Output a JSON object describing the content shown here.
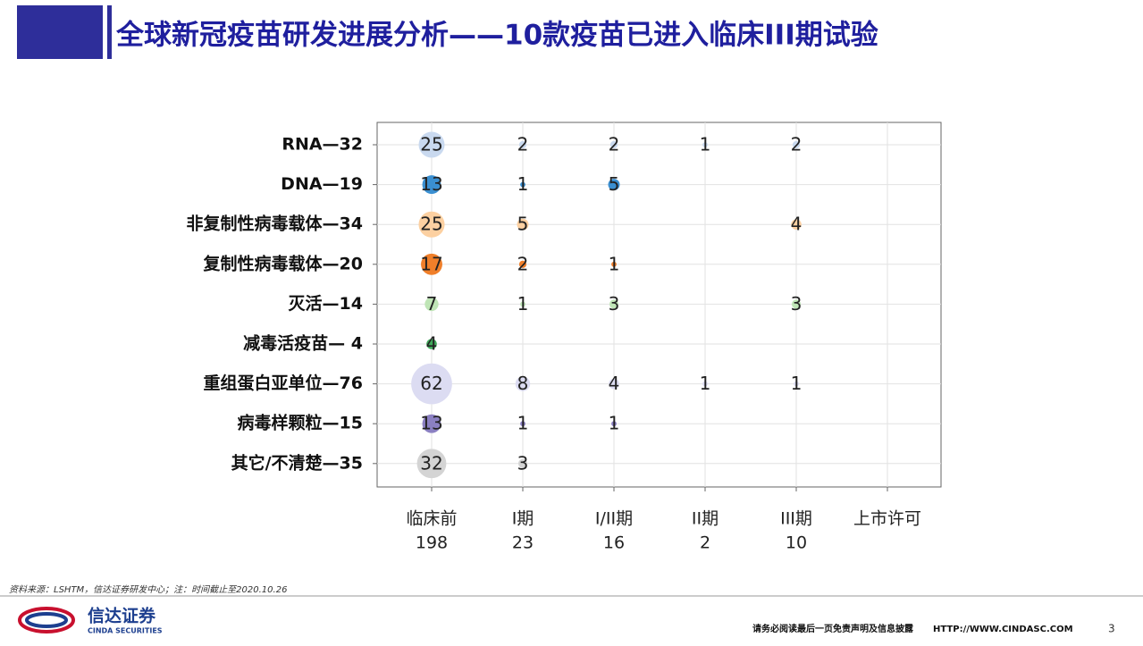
{
  "header": {
    "title": "全球新冠疫苗研发进展分析——10款疫苗已进入临床III期试验"
  },
  "chart_data": {
    "type": "bubble-grid",
    "x_categories": [
      "临床前",
      "I期",
      "I/II期",
      "II期",
      "III期",
      "上市许可"
    ],
    "x_totals": [
      198,
      23,
      16,
      2,
      10,
      null
    ],
    "series": [
      {
        "name": "RNA—32",
        "color": "#c9d9ef",
        "values": [
          25,
          2,
          2,
          1,
          2,
          null
        ]
      },
      {
        "name": "DNA—19",
        "color": "#3a8fd1",
        "values": [
          13,
          1,
          5,
          null,
          null,
          null
        ]
      },
      {
        "name": "非复制性病毒载体—34",
        "color": "#fcd0a1",
        "values": [
          25,
          5,
          null,
          null,
          4,
          null
        ]
      },
      {
        "name": "复制性病毒载体—20",
        "color": "#f07f2a",
        "values": [
          17,
          2,
          1,
          null,
          null,
          null
        ]
      },
      {
        "name": "灭活—14",
        "color": "#bfe5b6",
        "values": [
          7,
          1,
          3,
          null,
          3,
          null
        ]
      },
      {
        "name": "减毒活疫苗— 4",
        "color": "#3fa85a",
        "values": [
          4,
          null,
          null,
          null,
          null,
          null
        ]
      },
      {
        "name": "重组蛋白亚单位—76",
        "color": "#dcdcf2",
        "values": [
          62,
          8,
          4,
          1,
          1,
          null
        ]
      },
      {
        "name": "病毒样颗粒—15",
        "color": "#8b80c2",
        "values": [
          13,
          1,
          1,
          null,
          null,
          null
        ]
      },
      {
        "name": "其它/不清楚—35",
        "color": "#d4d4d4",
        "values": [
          32,
          3,
          null,
          null,
          null,
          null
        ]
      }
    ]
  },
  "footer": {
    "source": "资料来源：LSHTM，信达证券研发中心；注：时间截止至2020.10.26",
    "logo_cn": "信达证券",
    "logo_en": "CINDA SECURITIES",
    "disclaimer": "请务必阅读最后一页免责声明及信息披露",
    "url": "HTTP://WWW.CINDASC.COM",
    "page": "3"
  }
}
